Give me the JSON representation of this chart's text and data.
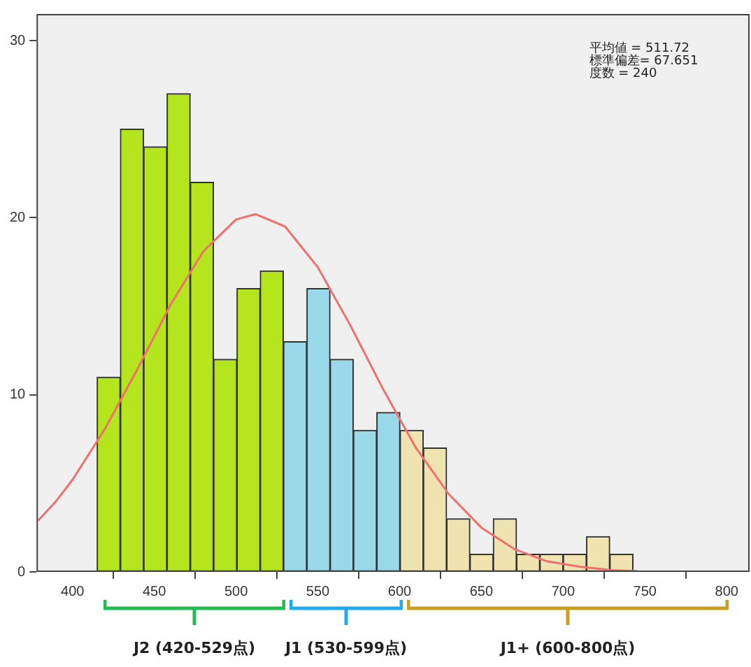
{
  "chart_data": {
    "type": "histogram",
    "bins": [
      415,
      429.25,
      443.5,
      457.75,
      472,
      486.25,
      500.5,
      514.75,
      529,
      543.25,
      557.5,
      571.75,
      586,
      600.25,
      614.5,
      628.75,
      643,
      657.25,
      671.5,
      685.75,
      700,
      714.25,
      728.5,
      742.75
    ],
    "values": [
      11,
      25,
      24,
      27,
      22,
      12,
      16,
      17,
      13,
      16,
      12,
      8,
      9,
      8,
      7,
      3,
      1,
      3,
      1,
      1,
      1,
      2,
      1
    ],
    "colors": [
      "#b5e61d",
      "#b5e61d",
      "#b5e61d",
      "#b5e61d",
      "#b5e61d",
      "#b5e61d",
      "#b5e61d",
      "#b5e61d",
      "#99d9ea",
      "#99d9ea",
      "#99d9ea",
      "#99d9ea",
      "#99d9ea",
      "#efe4b0",
      "#efe4b0",
      "#efe4b0",
      "#efe4b0",
      "#efe4b0",
      "#efe4b0",
      "#efe4b0",
      "#efe4b0",
      "#efe4b0",
      "#efe4b0"
    ],
    "series": [
      {
        "type": "line",
        "color": "#f07070",
        "x": [
          379,
          390,
          400,
          420,
          440,
          460,
          480,
          500,
          512,
          530,
          550,
          570,
          590,
          610,
          630,
          650,
          670,
          690,
          710,
          730,
          745
        ],
        "values": [
          2.9,
          4.0,
          5.2,
          8.1,
          11.5,
          15.1,
          18.1,
          19.9,
          20.2,
          19.5,
          17.2,
          13.9,
          10.3,
          7.0,
          4.4,
          2.5,
          1.3,
          0.6,
          0.3,
          0.1,
          0.05
        ]
      }
    ],
    "xlim": [
      378,
      814
    ],
    "xticks": [
      400,
      450,
      500,
      550,
      600,
      650,
      700,
      750,
      800
    ],
    "ylim": [
      0,
      31.5
    ],
    "yticks": [
      0,
      10,
      20,
      30
    ],
    "grid": false,
    "legend": false,
    "marker": "none",
    "line_style": "solid",
    "annotations": [
      "平均値 = 511.72",
      "標準偏差= 67.651",
      "度数 = 240",
      "J2 (420-529点)",
      "J1 (530-599点)",
      "J1+ (600-800点)"
    ]
  }
}
